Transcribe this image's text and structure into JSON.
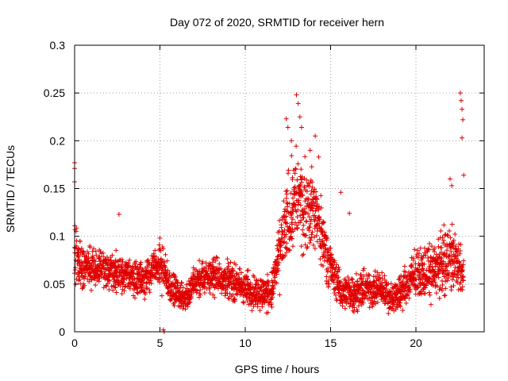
{
  "chart_data": {
    "type": "scatter",
    "title": "Day 072 of 2020, SRMTID for receiver hern",
    "xlabel": "GPS time / hours",
    "ylabel": "SRMTID / TECUs",
    "xlim": [
      0,
      24
    ],
    "ylim": [
      0,
      0.3
    ],
    "xticks": [
      0,
      5,
      10,
      15,
      20
    ],
    "xtick_labels": [
      "0",
      "5",
      "10",
      "15",
      "20"
    ],
    "yticks": [
      0,
      0.05,
      0.1,
      0.15,
      0.2,
      0.25,
      0.3
    ],
    "ytick_labels": [
      "0",
      "0.05",
      "0.1",
      "0.15",
      "0.2",
      "0.25",
      "0.3"
    ],
    "grid": true,
    "marker": "+",
    "color": "#e00000",
    "profile_x": [
      0,
      0.2,
      0.5,
      1,
      2,
      3,
      4,
      5,
      5.5,
      6,
      6.5,
      7,
      8,
      9,
      10,
      11,
      11.5,
      12,
      12.5,
      13,
      13.5,
      14,
      14.5,
      15,
      15.5,
      16,
      17,
      18,
      18.5,
      19,
      20,
      21,
      21.5,
      22,
      22.5,
      22.8
    ],
    "profile_y": [
      0.09,
      0.08,
      0.07,
      0.065,
      0.065,
      0.06,
      0.055,
      0.07,
      0.05,
      0.04,
      0.035,
      0.05,
      0.06,
      0.055,
      0.045,
      0.04,
      0.04,
      0.08,
      0.12,
      0.14,
      0.13,
      0.13,
      0.1,
      0.07,
      0.045,
      0.04,
      0.045,
      0.045,
      0.035,
      0.04,
      0.06,
      0.065,
      0.07,
      0.08,
      0.07,
      0.06
    ],
    "profile_spread": [
      0.04,
      0.03,
      0.025,
      0.02,
      0.02,
      0.02,
      0.02,
      0.025,
      0.02,
      0.015,
      0.015,
      0.02,
      0.02,
      0.02,
      0.02,
      0.02,
      0.02,
      0.035,
      0.05,
      0.055,
      0.05,
      0.045,
      0.035,
      0.025,
      0.02,
      0.02,
      0.02,
      0.02,
      0.015,
      0.02,
      0.025,
      0.03,
      0.035,
      0.04,
      0.035,
      0.02
    ],
    "outliers": [
      {
        "x": 0.0,
        "y": 0.177
      },
      {
        "x": 0.0,
        "y": 0.171
      },
      {
        "x": 0.0,
        "y": 0.157
      },
      {
        "x": 2.6,
        "y": 0.123
      },
      {
        "x": 5.2,
        "y": 0.002
      },
      {
        "x": 5.25,
        "y": 0.0
      },
      {
        "x": 12.4,
        "y": 0.223
      },
      {
        "x": 12.5,
        "y": 0.214
      },
      {
        "x": 12.7,
        "y": 0.2
      },
      {
        "x": 13.0,
        "y": 0.248
      },
      {
        "x": 13.1,
        "y": 0.239
      },
      {
        "x": 13.2,
        "y": 0.225
      },
      {
        "x": 13.3,
        "y": 0.214
      },
      {
        "x": 13.8,
        "y": 0.19
      },
      {
        "x": 14.1,
        "y": 0.205
      },
      {
        "x": 14.3,
        "y": 0.183
      },
      {
        "x": 15.6,
        "y": 0.146
      },
      {
        "x": 16.1,
        "y": 0.124
      },
      {
        "x": 22.6,
        "y": 0.25
      },
      {
        "x": 22.65,
        "y": 0.242
      },
      {
        "x": 22.7,
        "y": 0.233
      },
      {
        "x": 22.75,
        "y": 0.222
      },
      {
        "x": 22.7,
        "y": 0.203
      },
      {
        "x": 22.8,
        "y": 0.164
      },
      {
        "x": 22.0,
        "y": 0.16
      },
      {
        "x": 22.1,
        "y": 0.153
      }
    ]
  }
}
